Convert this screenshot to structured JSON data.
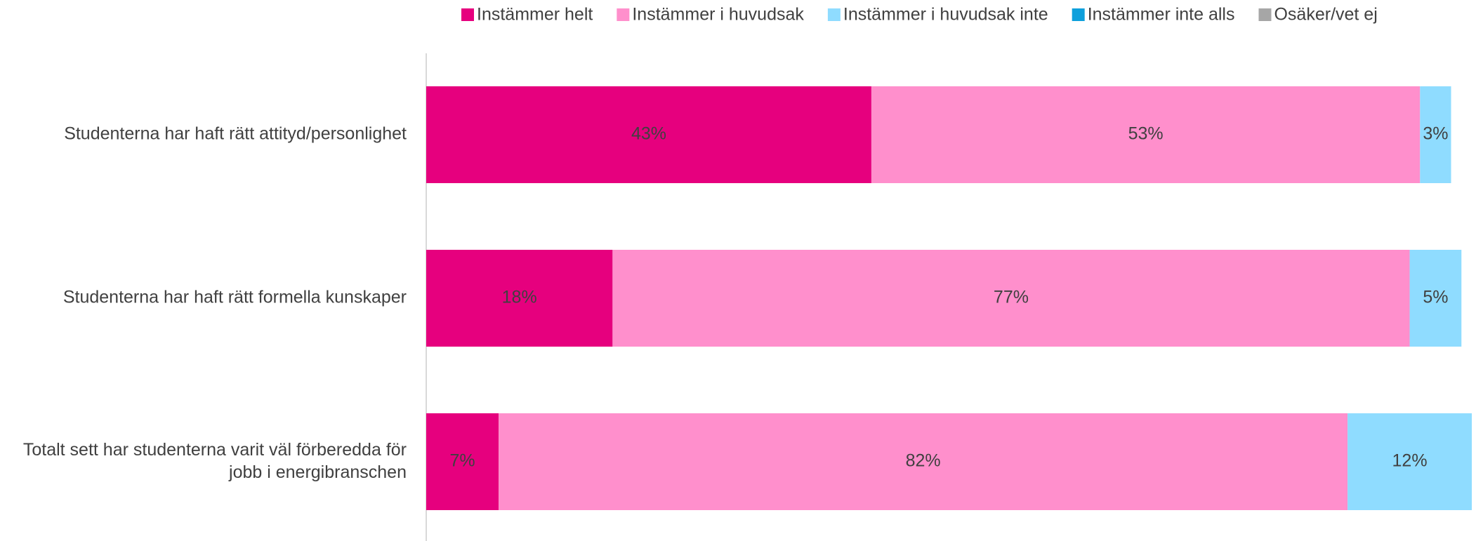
{
  "chart_data": {
    "type": "stacked_barh",
    "categories": [
      "Studenterna har haft rätt attityd/personlighet",
      "Studenterna har haft rätt formella kunskaper",
      "Totalt sett har studenterna varit väl förberedda för jobb i energibranschen"
    ],
    "series": [
      {
        "name": "Instämmer helt",
        "color": "#e6007e",
        "values": [
          43,
          18,
          7
        ],
        "value_labels": [
          "43%",
          "18%",
          "7%"
        ]
      },
      {
        "name": "Instämmer i huvudsak",
        "color": "#ff8fcc",
        "values": [
          53,
          77,
          82
        ],
        "value_labels": [
          "53%",
          "77%",
          "82%"
        ]
      },
      {
        "name": "Instämmer i huvudsak inte",
        "color": "#8fdcff",
        "values": [
          3,
          5,
          12
        ],
        "value_labels": [
          "3%",
          "5%",
          "12%"
        ]
      },
      {
        "name": "Instämmer inte alls",
        "color": "#0ea0dc",
        "values": [
          0,
          0,
          0
        ]
      },
      {
        "name": "Osäker/vet ej",
        "color": "#a6a6a6",
        "values": [
          0,
          0,
          0
        ]
      }
    ],
    "xlim": [
      0,
      101
    ],
    "legend": "top"
  }
}
